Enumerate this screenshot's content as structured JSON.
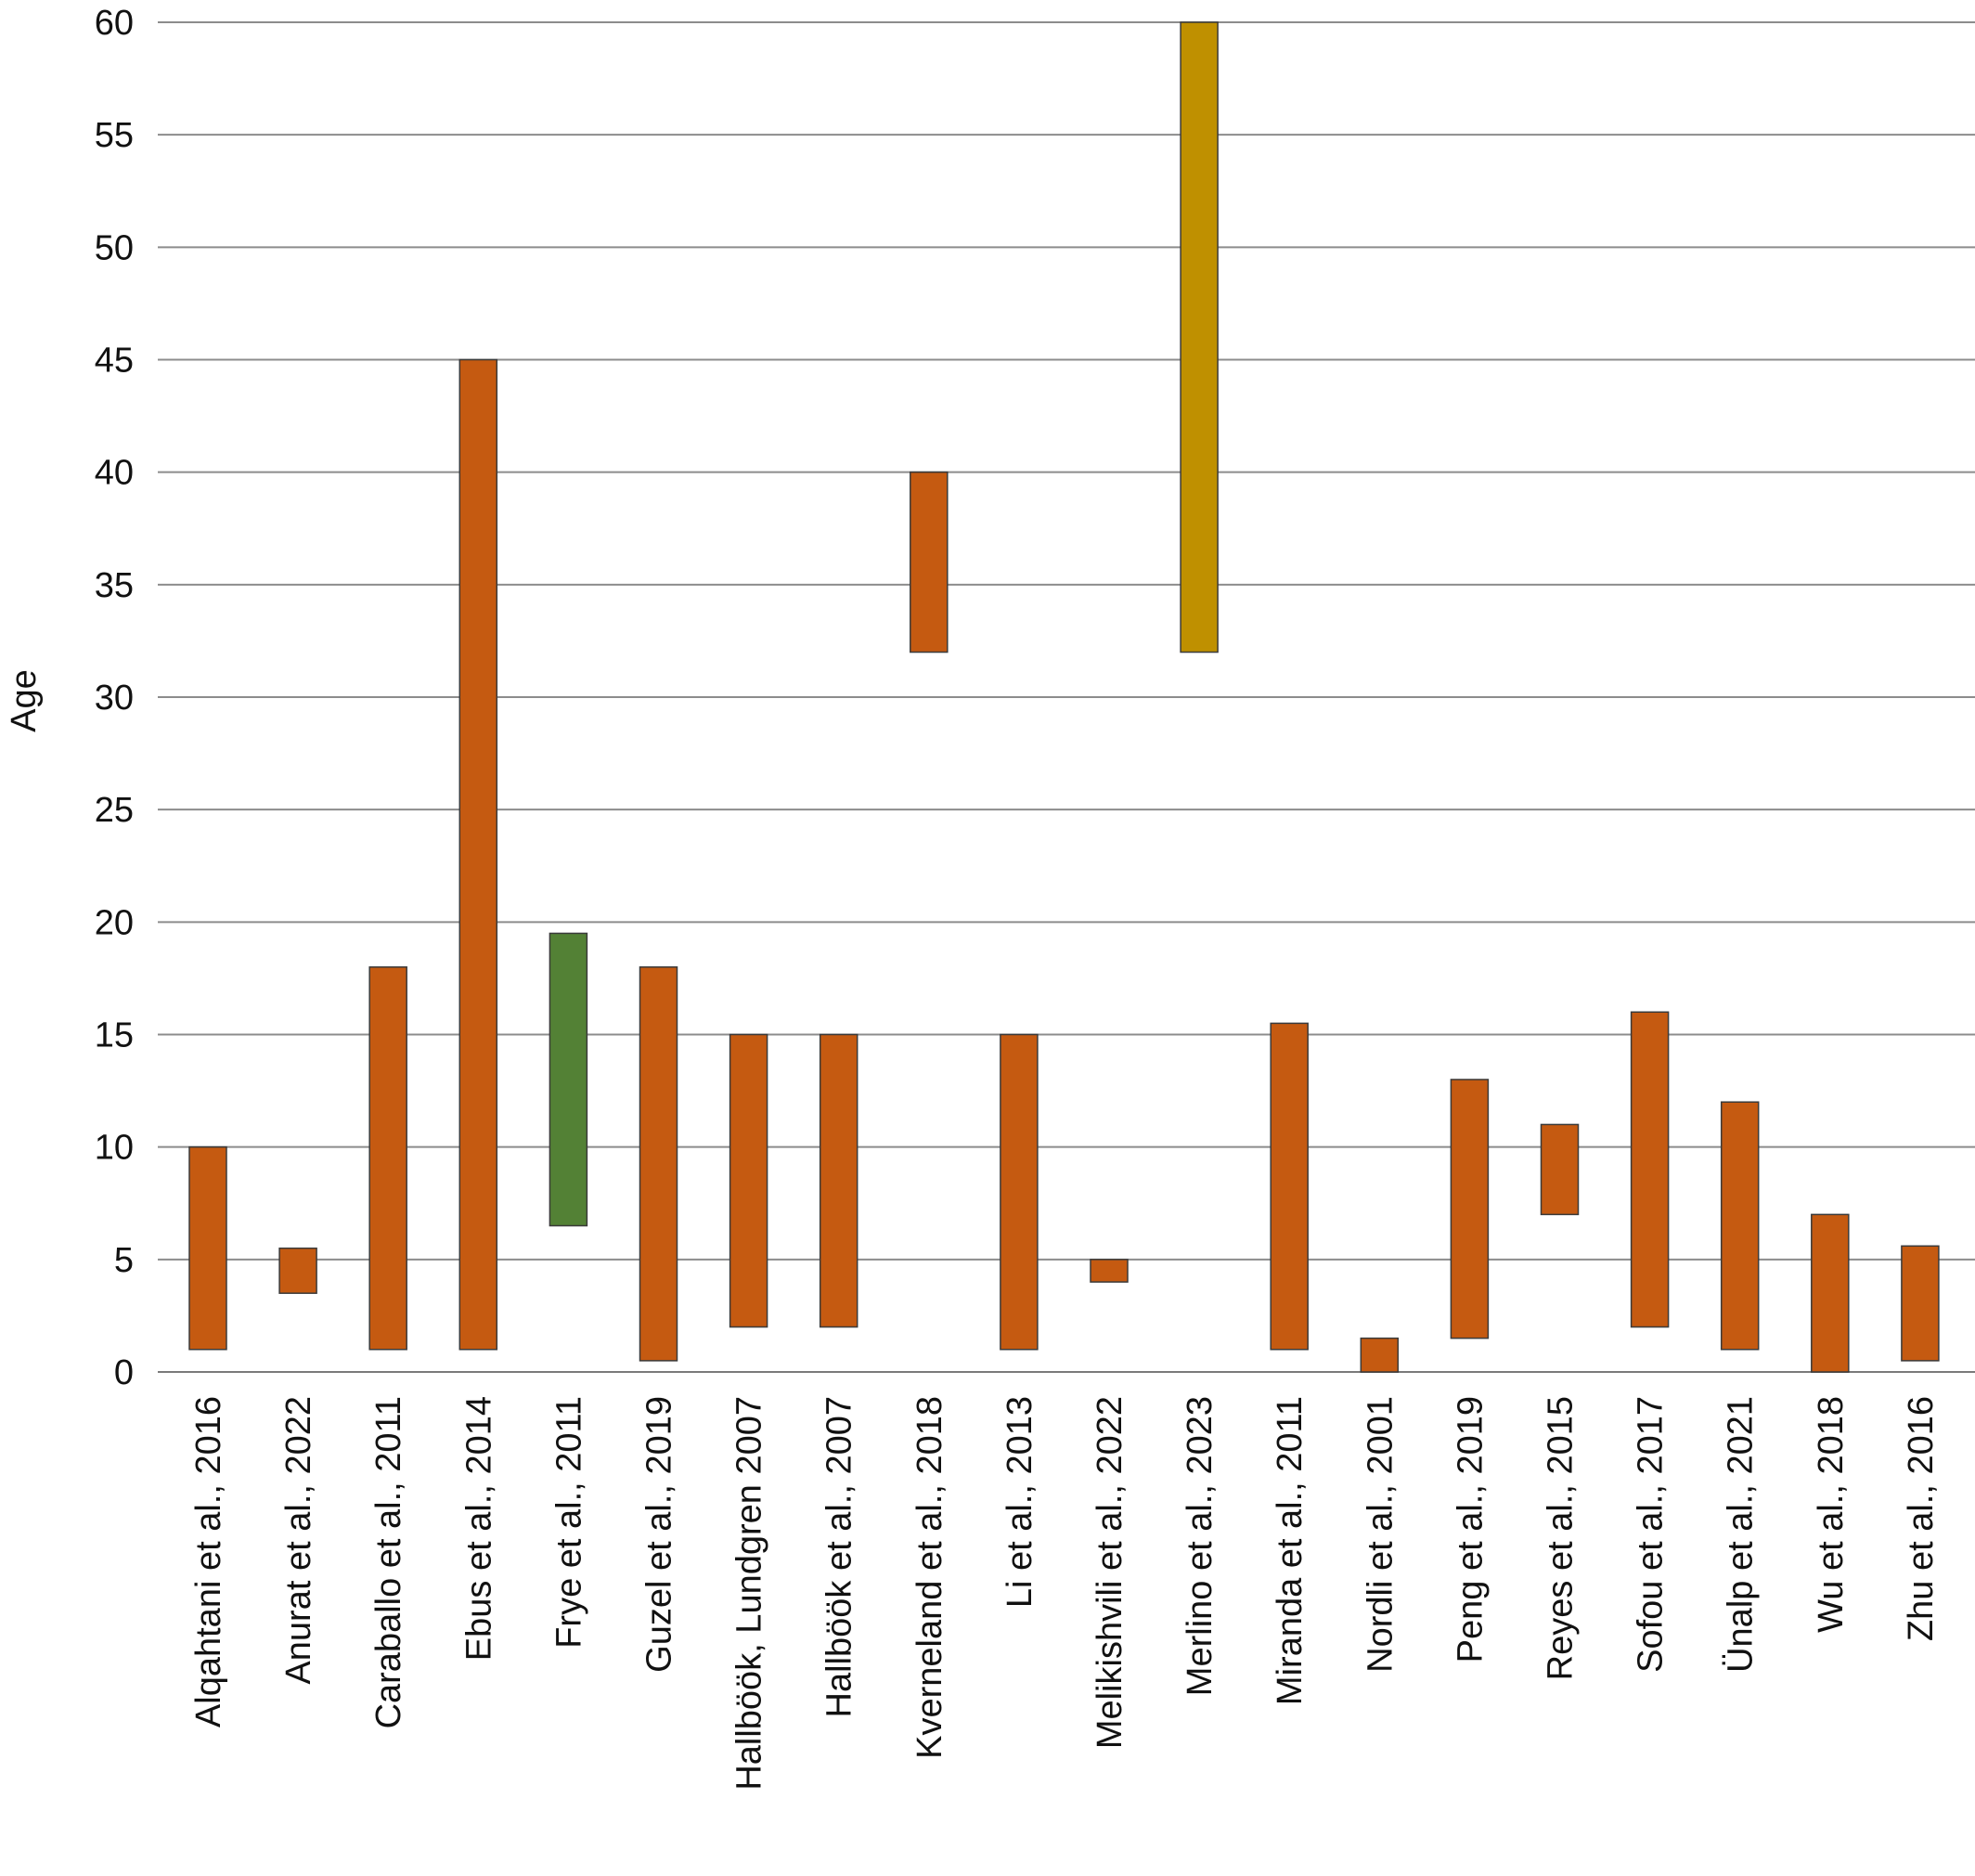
{
  "chart_data": {
    "type": "bar",
    "subtype": "floating-range",
    "title": "",
    "xlabel": "",
    "ylabel": "Age",
    "ylim": [
      0,
      60
    ],
    "yticks": [
      0,
      5,
      10,
      15,
      20,
      25,
      30,
      35,
      40,
      45,
      50,
      55,
      60
    ],
    "grid": true,
    "legend": "none",
    "colors": {
      "default": "#c55a11",
      "green": "#538135",
      "gold": "#bf9000"
    },
    "categories": [
      "Alqahtani et al., 2016",
      "Anurat et al., 2022",
      "Caraballo et al., 2011",
      "Ebus et al., 2014",
      "Frye et al., 2011",
      "Guzel et al., 2019",
      "Hallböök, Lundgren 2007",
      "Hallböök et al., 2007",
      "Kverneland et al., 2018",
      "Li et al., 2013",
      "Melikishvili et al., 2022",
      "Merlino et al., 2023",
      "Miranda et al., 2011",
      "Nordli et al., 2001",
      "Peng et al., 2019",
      "Reyes et al., 2015",
      "Sofou et al., 2017",
      "Ünalp et al., 2021",
      "Wu et al., 2018",
      "Zhu et al., 2016"
    ],
    "ranges": [
      [
        1,
        10
      ],
      [
        3.5,
        5.5
      ],
      [
        1,
        18
      ],
      [
        1,
        45
      ],
      [
        6.5,
        19.5
      ],
      [
        0.5,
        18
      ],
      [
        2,
        15
      ],
      [
        2,
        15
      ],
      [
        32,
        40
      ],
      [
        1,
        15
      ],
      [
        4,
        5
      ],
      [
        32,
        60
      ],
      [
        1,
        15.5
      ],
      [
        0,
        1.5
      ],
      [
        1.5,
        13
      ],
      [
        7,
        11
      ],
      [
        2,
        16
      ],
      [
        1,
        12
      ],
      [
        0,
        7
      ],
      [
        0.5,
        5.6
      ]
    ],
    "bar_colors": [
      "default",
      "default",
      "default",
      "default",
      "green",
      "default",
      "default",
      "default",
      "default",
      "default",
      "default",
      "gold",
      "default",
      "default",
      "default",
      "default",
      "default",
      "default",
      "default",
      "default"
    ]
  }
}
